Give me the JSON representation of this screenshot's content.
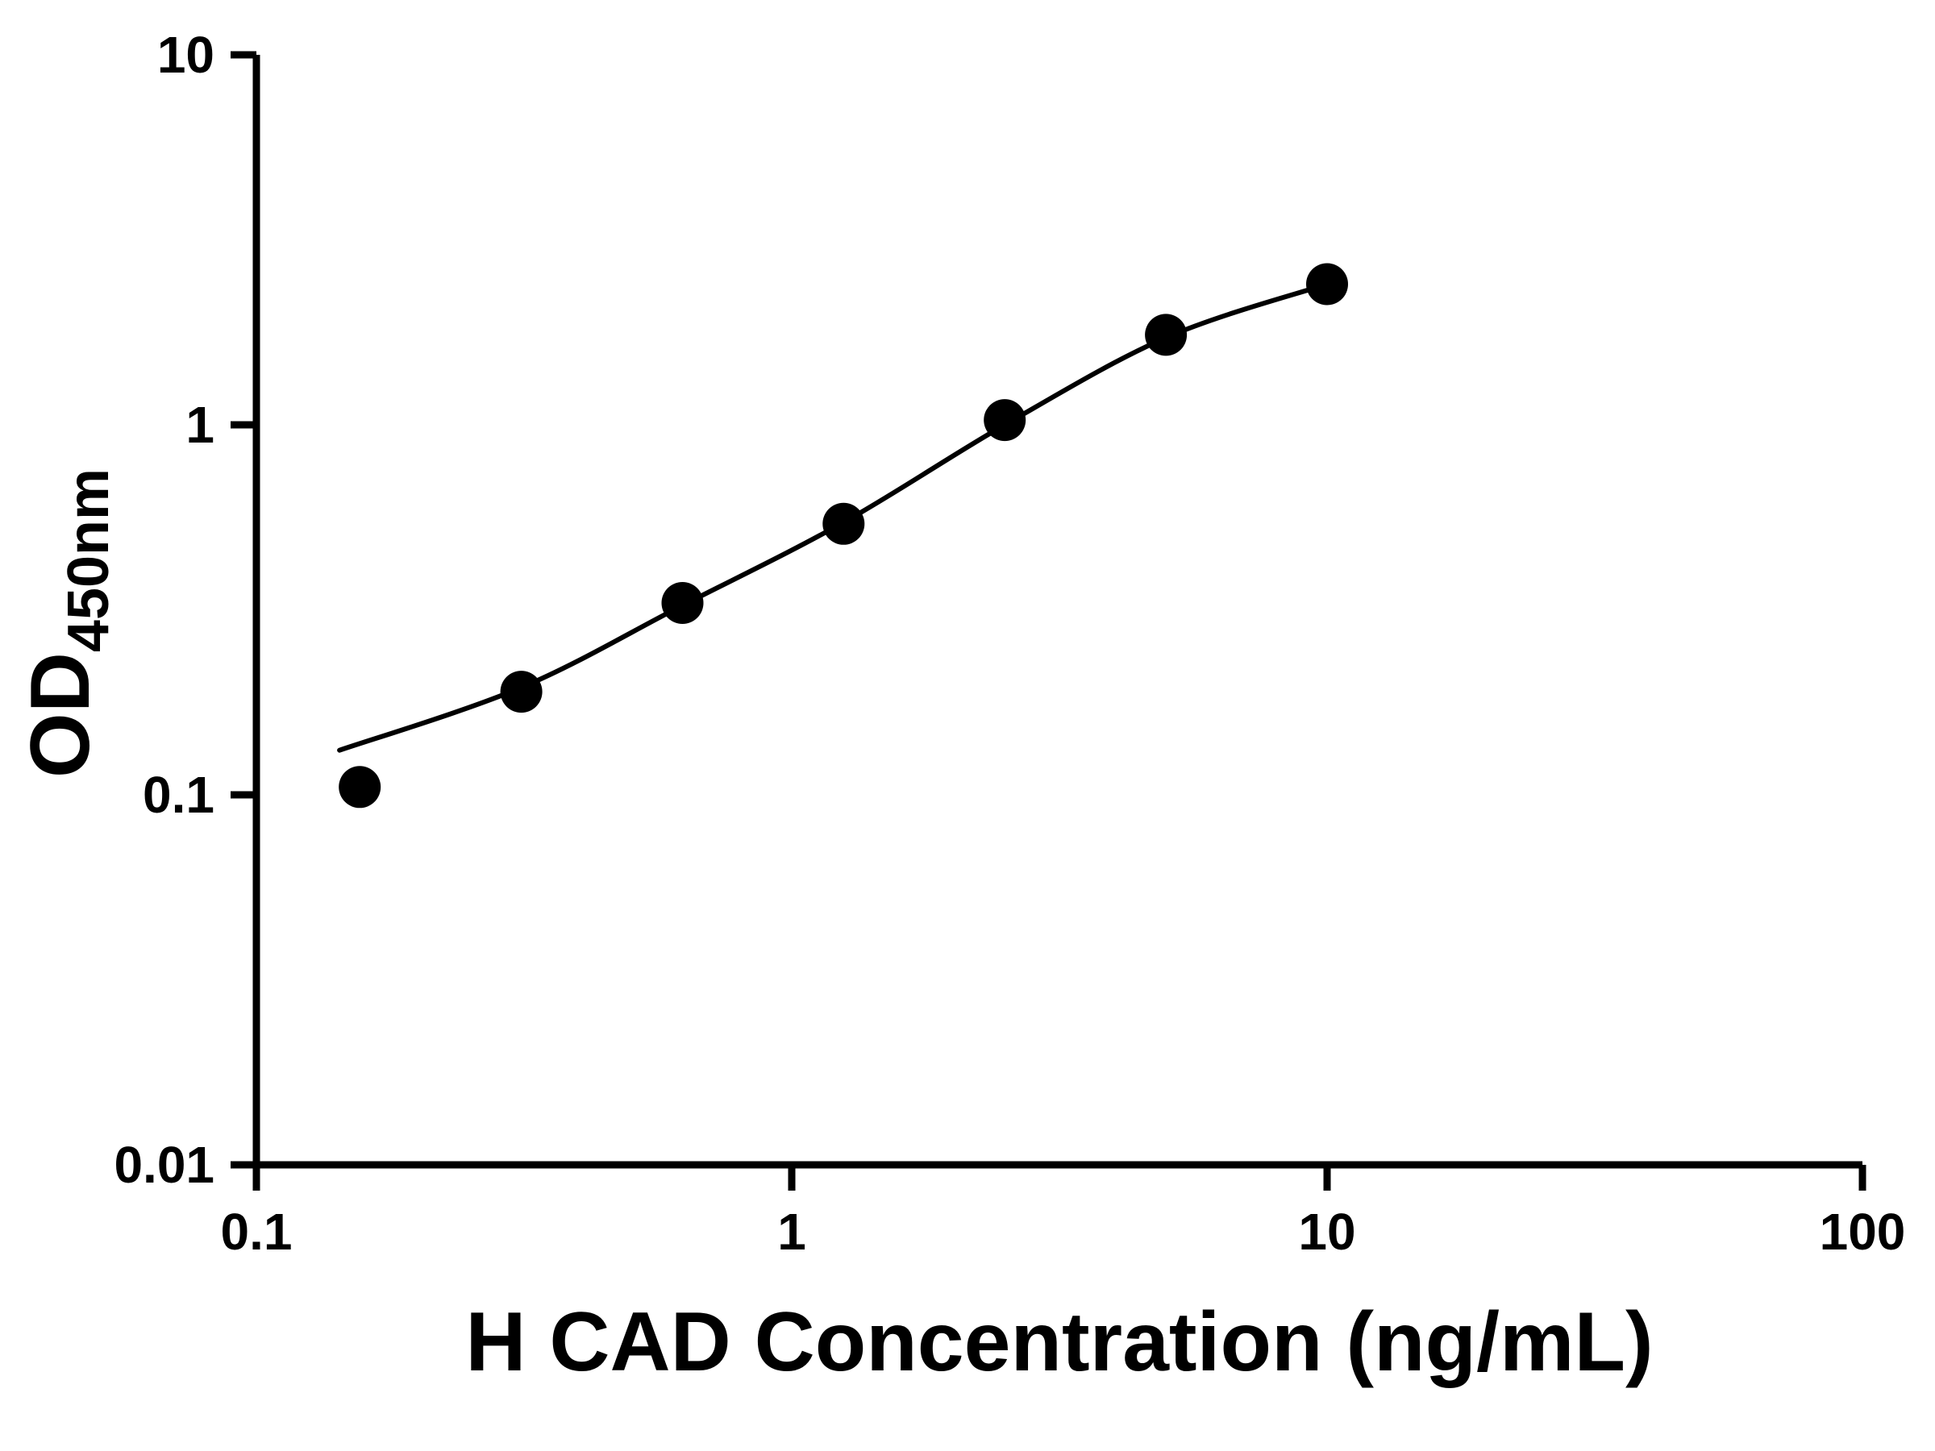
{
  "page": {
    "background": "#ffffff"
  },
  "chart_data": {
    "type": "scatter",
    "title": "",
    "xlabel": "H CAD Concentration (ng/mL)",
    "ylabel_main": "OD",
    "ylabel_sub": "450nm",
    "x_scale": "log",
    "y_scale": "log",
    "xlim": [
      0.1,
      100
    ],
    "ylim": [
      0.01,
      10
    ],
    "x_ticks": [
      0.1,
      1,
      10,
      100
    ],
    "x_tick_labels": [
      "0.1",
      "1",
      "10",
      "100"
    ],
    "y_ticks": [
      0.01,
      0.1,
      1,
      10
    ],
    "y_tick_labels": [
      "0.01",
      "0.1",
      "1",
      "10"
    ],
    "grid": false,
    "legend": null,
    "axis_color": "#000000",
    "marker_color": "#000000",
    "line_color": "#000000",
    "marker_shape": "circle",
    "points": [
      {
        "x": 0.156,
        "y": 0.105
      },
      {
        "x": 0.3125,
        "y": 0.19
      },
      {
        "x": 0.625,
        "y": 0.33
      },
      {
        "x": 1.25,
        "y": 0.54
      },
      {
        "x": 2.5,
        "y": 1.03
      },
      {
        "x": 5,
        "y": 1.75
      },
      {
        "x": 10,
        "y": 2.4
      }
    ],
    "fit_curve": [
      {
        "x": 0.143,
        "y": 0.132
      },
      {
        "x": 0.3125,
        "y": 0.195
      },
      {
        "x": 0.625,
        "y": 0.325
      },
      {
        "x": 1.25,
        "y": 0.545
      },
      {
        "x": 2.5,
        "y": 1.0
      },
      {
        "x": 5,
        "y": 1.72
      },
      {
        "x": 10,
        "y": 2.4
      }
    ]
  }
}
